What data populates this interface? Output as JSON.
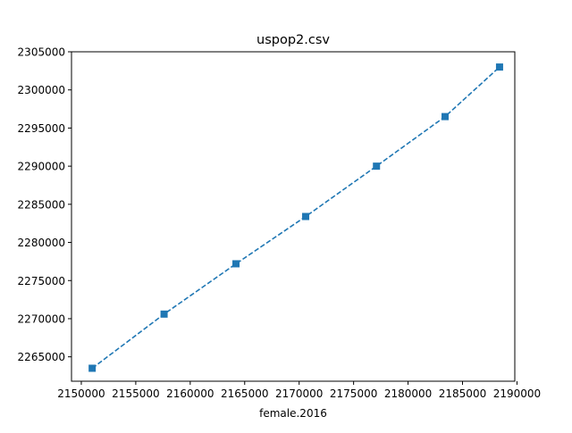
{
  "chart_data": {
    "type": "line",
    "title": "uspop2.csv",
    "xlabel": "female.2016",
    "ylabel": "",
    "xlim": [
      2149100,
      2189800
    ],
    "ylim": [
      2261800,
      2305000
    ],
    "xticks": [
      2150000,
      2155000,
      2160000,
      2165000,
      2170000,
      2175000,
      2180000,
      2185000,
      2190000
    ],
    "xtick_labels": [
      "2150000",
      "2155000",
      "2160000",
      "2165000",
      "2170000",
      "2175000",
      "2180000",
      "2185000",
      "2190000"
    ],
    "yticks": [
      2265000,
      2270000,
      2275000,
      2280000,
      2285000,
      2290000,
      2295000,
      2300000,
      2305000
    ],
    "ytick_labels": [
      "2265000",
      "2270000",
      "2275000",
      "2280000",
      "2285000",
      "2290000",
      "2295000",
      "2300000",
      "2305000"
    ],
    "grid": false,
    "series": [
      {
        "line_style": "dashed",
        "marker": "square",
        "color": "#1f77b4",
        "x": [
          2151000,
          2157600,
          2164200,
          2170600,
          2177100,
          2183400,
          2188400
        ],
        "y": [
          2263500,
          2270600,
          2277200,
          2283400,
          2290000,
          2296500,
          2303000
        ]
      }
    ]
  }
}
